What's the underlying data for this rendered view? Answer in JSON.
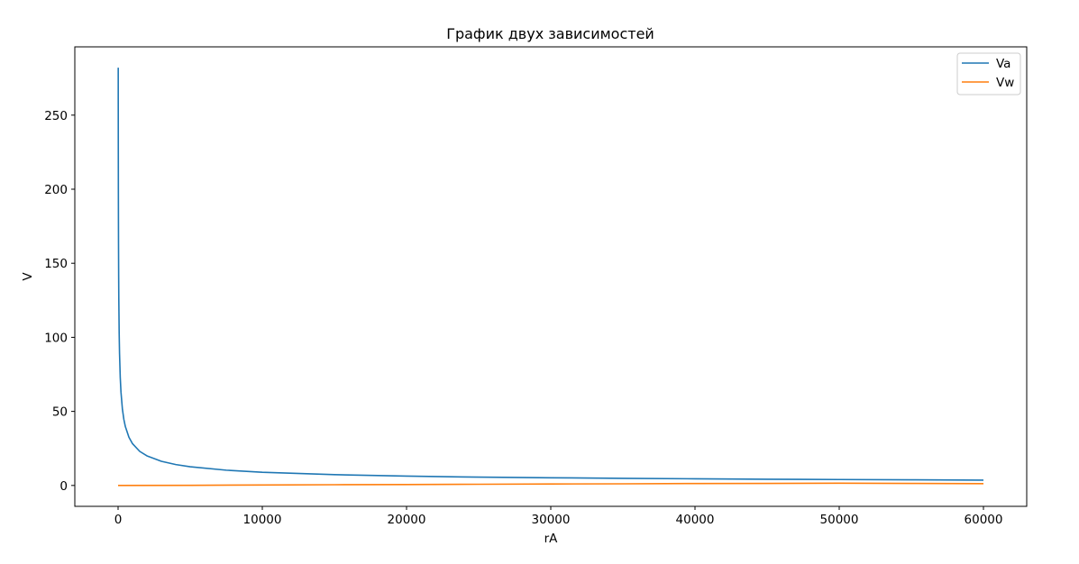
{
  "chart_data": {
    "type": "line",
    "title": "График двух зависимостей",
    "xlabel": "rA",
    "ylabel": "V",
    "xlim": [
      -3000,
      63000
    ],
    "ylim": [
      -14.1,
      296.1
    ],
    "grid": false,
    "legend_position": "top-right",
    "x_ticks": [
      0,
      10000,
      20000,
      30000,
      40000,
      50000,
      60000
    ],
    "x_tick_labels": [
      "0",
      "10000",
      "20000",
      "30000",
      "40000",
      "50000",
      "60000"
    ],
    "y_ticks": [
      0,
      50,
      100,
      150,
      200,
      250
    ],
    "y_tick_labels": [
      "0",
      "50",
      "100",
      "150",
      "200",
      "250"
    ],
    "series": [
      {
        "name": "Va",
        "color": "#1f77b4",
        "x": [
          10,
          12,
          15,
          20,
          25,
          30,
          40,
          50,
          75,
          100,
          150,
          200,
          300,
          400,
          500,
          750,
          1000,
          1500,
          2000,
          3000,
          4000,
          5000,
          7500,
          10000,
          15000,
          20000,
          25000,
          30000,
          35000,
          40000,
          45000,
          50000,
          55000,
          60000
        ],
        "y": [
          282,
          258,
          231,
          200,
          179,
          163,
          141,
          126,
          103,
          89.3,
          72.9,
          63.1,
          51.5,
          44.6,
          39.9,
          32.6,
          28.2,
          23.0,
          20.0,
          16.3,
          14.1,
          12.6,
          10.3,
          8.9,
          7.3,
          6.3,
          5.6,
          5.2,
          4.8,
          4.5,
          4.2,
          4.0,
          3.8,
          3.6
        ]
      },
      {
        "name": "Vw",
        "color": "#ff7f0e",
        "x": [
          0,
          5000,
          10000,
          15000,
          20000,
          25000,
          30000,
          35000,
          40000,
          45000,
          50000,
          55000,
          60000
        ],
        "y": [
          0.0,
          0.1,
          0.3,
          0.5,
          0.6,
          0.8,
          1.0,
          1.1,
          1.3,
          1.4,
          1.5,
          1.4,
          1.2
        ]
      }
    ]
  }
}
